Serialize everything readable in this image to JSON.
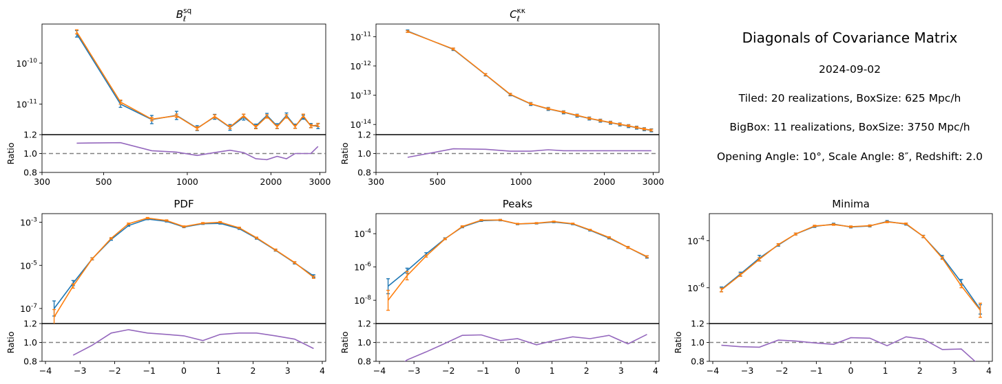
{
  "colors": {
    "tiled": "#1f77b4",
    "bigbox": "#ff7f0e",
    "ratio": "#9467bd",
    "reference": "#808080"
  },
  "info": {
    "title": "Diagonals of Covariance Matrix",
    "date": "2024-09-02",
    "tiled": "Tiled: 20 realizations, BoxSize: 625 Mpc/h",
    "bigbox": "BigBox: 11 realizations, BoxSize: 3750 Mpc/h",
    "params": "Opening Angle: 10°, Scale Angle: 8″, Redshift: 2.0"
  },
  "chart_data": [
    {
      "type": "line",
      "title": "B_ℓ^sq",
      "yscale": "log",
      "xscale": "log",
      "ylim": [
        1.8e-12,
        9e-10
      ],
      "yticks": [
        {
          "v": 1e-10,
          "label": "10^-10"
        },
        {
          "v": 1e-11,
          "label": "10^-11"
        }
      ],
      "xlim": [
        300,
        3150
      ],
      "xticks": [
        {
          "v": 300,
          "label": "300"
        },
        {
          "v": 500,
          "label": "500"
        },
        {
          "v": 1000,
          "label": "1000"
        },
        {
          "v": 2000,
          "label": "2000"
        },
        {
          "v": 3000,
          "label": "3000"
        }
      ],
      "x": [
        400,
        575,
        745,
        915,
        1085,
        1255,
        1425,
        1595,
        1765,
        1935,
        2105,
        2275,
        2445,
        2615,
        2785,
        2955
      ],
      "series": [
        {
          "key": "tiled",
          "values": [
            5.2e-10,
            1e-11,
            4.2e-12,
            5.3e-12,
            2.6e-12,
            4.9e-12,
            2.7e-12,
            4.8e-12,
            2.9e-12,
            5.3e-12,
            2.9e-12,
            5.3e-12,
            2.9e-12,
            4.8e-12,
            3e-12,
            2.9e-12
          ],
          "err": [
            0.08,
            0.08,
            0.1,
            0.1,
            0.06,
            0.06,
            0.07,
            0.07,
            0.05,
            0.05,
            0.06,
            0.06,
            0.05,
            0.05,
            0.05,
            0.06
          ]
        },
        {
          "key": "bigbox",
          "values": [
            5.8e-10,
            1.12e-11,
            4.3e-12,
            5.2e-12,
            2.55e-12,
            5e-12,
            2.75e-12,
            5.2e-12,
            2.75e-12,
            5e-12,
            2.8e-12,
            5e-12,
            2.8e-12,
            5.2e-12,
            2.9e-12,
            3.1e-12
          ],
          "err": [
            0.05,
            0.05,
            0.04,
            0.04,
            0.04,
            0.04,
            0.04,
            0.04,
            0.04,
            0.04,
            0.04,
            0.04,
            0.04,
            0.04,
            0.04,
            0.04
          ]
        }
      ],
      "ratio_x": [
        400,
        575,
        745,
        915,
        1085,
        1255,
        1425,
        1595,
        1765,
        1935,
        2105,
        2275,
        2445,
        2615,
        2785,
        2955
      ],
      "ratio": [
        1.11,
        1.115,
        1.03,
        1.015,
        0.98,
        1.01,
        1.035,
        1.01,
        0.945,
        0.935,
        0.97,
        0.945,
        1.0,
        1.0,
        1.0,
        1.075
      ],
      "ratio_ylabel": "Ratio",
      "ratio_ylim": [
        0.8,
        1.2
      ],
      "ratio_yticks": [
        "0.8",
        "1.0",
        "1.2"
      ]
    },
    {
      "type": "line",
      "title": "C_ℓ^κκ",
      "yscale": "log",
      "xscale": "log",
      "ylim": [
        4.5e-15,
        2.7e-11
      ],
      "yticks": [
        {
          "v": 1e-11,
          "label": "10^-11"
        },
        {
          "v": 1e-12,
          "label": "10^-12"
        },
        {
          "v": 1e-13,
          "label": "10^-13"
        },
        {
          "v": 1e-14,
          "label": "10^-14"
        }
      ],
      "xlim": [
        300,
        3150
      ],
      "xticks": [
        {
          "v": 300,
          "label": "300"
        },
        {
          "v": 500,
          "label": "500"
        },
        {
          "v": 1000,
          "label": "1000"
        },
        {
          "v": 2000,
          "label": "2000"
        },
        {
          "v": 3000,
          "label": "3000"
        }
      ],
      "x": [
        390,
        570,
        745,
        915,
        1085,
        1255,
        1425,
        1595,
        1765,
        1935,
        2105,
        2275,
        2445,
        2615,
        2785,
        2955
      ],
      "series": [
        {
          "key": "tiled",
          "values": [
            1.55e-11,
            3.7e-12,
            5e-13,
            1.05e-13,
            5e-14,
            3.4e-14,
            2.6e-14,
            2e-14,
            1.6e-14,
            1.35e-14,
            1.15e-14,
            1e-14,
            8.8e-15,
            7.8e-15,
            6.9e-15,
            6.3e-15
          ],
          "err": [
            0.04,
            0.04,
            0.04,
            0.04,
            0.05,
            0.05,
            0.05,
            0.05,
            0.05,
            0.05,
            0.05,
            0.05,
            0.05,
            0.05,
            0.05,
            0.05
          ]
        },
        {
          "key": "bigbox",
          "values": [
            1.5e-11,
            3.8e-12,
            5.1e-13,
            1.08e-13,
            5.1e-14,
            3.45e-14,
            2.65e-14,
            2.05e-14,
            1.62e-14,
            1.37e-14,
            1.17e-14,
            1.02e-14,
            9e-15,
            7.9e-15,
            7e-15,
            6.4e-15
          ],
          "err": [
            0.03,
            0.03,
            0.03,
            0.03,
            0.03,
            0.03,
            0.03,
            0.03,
            0.03,
            0.03,
            0.03,
            0.03,
            0.03,
            0.03,
            0.03,
            0.03
          ]
        }
      ],
      "ratio_x": [
        390,
        570,
        745,
        915,
        1085,
        1255,
        1425,
        1595,
        1765,
        1935,
        2105,
        2275,
        2445,
        2615,
        2785,
        2955
      ],
      "ratio": [
        0.96,
        1.05,
        1.045,
        1.025,
        1.025,
        1.04,
        1.03,
        1.03,
        1.03,
        1.03,
        1.03,
        1.03,
        1.03,
        1.03,
        1.03,
        1.03
      ],
      "ratio_ylabel": "Ratio",
      "ratio_ylim": [
        0.8,
        1.2
      ],
      "ratio_yticks": [
        "0.8",
        "1.0",
        "1.2"
      ]
    },
    {
      "type": "line",
      "title": "PDF",
      "yscale": "log",
      "xscale": "linear",
      "ylim": [
        2e-08,
        0.0025
      ],
      "yticks": [
        {
          "v": 0.001,
          "label": "10^-3"
        },
        {
          "v": 1e-05,
          "label": "10^-5"
        },
        {
          "v": 1e-07,
          "label": "10^-7"
        }
      ],
      "xlim": [
        -4.1,
        4.1
      ],
      "xticks": [
        {
          "v": -4,
          "label": "−4"
        },
        {
          "v": -3,
          "label": "−3"
        },
        {
          "v": -2,
          "label": "−2"
        },
        {
          "v": -1,
          "label": "−1"
        },
        {
          "v": 0,
          "label": "0"
        },
        {
          "v": 1,
          "label": "1"
        },
        {
          "v": 2,
          "label": "2"
        },
        {
          "v": 3,
          "label": "3"
        },
        {
          "v": 4,
          "label": "4"
        }
      ],
      "x": [
        -3.75,
        -3.2,
        -2.65,
        -2.1,
        -1.6,
        -1.05,
        -0.5,
        0.0,
        0.55,
        1.05,
        1.6,
        2.1,
        2.65,
        3.2,
        3.75
      ],
      "series": [
        {
          "key": "tiled",
          "values": [
            1e-07,
            1.5e-06,
            2e-05,
            0.00016,
            0.0007,
            0.0014,
            0.0011,
            0.0006,
            0.00085,
            0.00088,
            0.0005,
            0.00018,
            5e-05,
            1.3e-05,
            3.2e-06
          ],
          "err": [
            0.35,
            0.12,
            0.05,
            0.04,
            0.03,
            0.03,
            0.03,
            0.03,
            0.03,
            0.03,
            0.03,
            0.04,
            0.04,
            0.05,
            0.06
          ]
        },
        {
          "key": "bigbox",
          "values": [
            4e-08,
            1.1e-06,
            2e-05,
            0.00018,
            0.00085,
            0.00155,
            0.0012,
            0.00063,
            0.0009,
            0.001,
            0.00055,
            0.00019,
            5.2e-05,
            1.35e-05,
            2.8e-06
          ],
          "err": [
            0.35,
            0.1,
            0.04,
            0.03,
            0.03,
            0.03,
            0.03,
            0.03,
            0.03,
            0.03,
            0.03,
            0.03,
            0.04,
            0.04,
            0.05
          ]
        }
      ],
      "ratio_x": [
        -3.2,
        -2.65,
        -2.1,
        -1.6,
        -1.05,
        -0.5,
        0.0,
        0.55,
        1.05,
        1.6,
        2.1,
        2.65,
        3.2,
        3.75
      ],
      "ratio": [
        0.865,
        0.97,
        1.1,
        1.135,
        1.1,
        1.085,
        1.07,
        1.02,
        1.085,
        1.1,
        1.1,
        1.07,
        1.035,
        0.935
      ],
      "ratio_ylabel": "Ratio",
      "ratio_ylim": [
        0.8,
        1.2
      ],
      "ratio_yticks": [
        "0.8",
        "1.0",
        "1.2"
      ]
    },
    {
      "type": "line",
      "title": "Peaks",
      "yscale": "log",
      "xscale": "linear",
      "ylim": [
        4e-10,
        0.0016
      ],
      "yticks": [
        {
          "v": 0.0001,
          "label": "10^-4"
        },
        {
          "v": 1e-06,
          "label": "10^-6"
        },
        {
          "v": 1e-08,
          "label": "10^-8"
        }
      ],
      "xlim": [
        -4.1,
        4.1
      ],
      "xticks": [
        {
          "v": -4,
          "label": "−4"
        },
        {
          "v": -3,
          "label": "−3"
        },
        {
          "v": -2,
          "label": "−2"
        },
        {
          "v": -1,
          "label": "−1"
        },
        {
          "v": 0,
          "label": "0"
        },
        {
          "v": 1,
          "label": "1"
        },
        {
          "v": 2,
          "label": "2"
        },
        {
          "v": 3,
          "label": "3"
        },
        {
          "v": 4,
          "label": "4"
        }
      ],
      "x": [
        -3.75,
        -3.2,
        -2.65,
        -2.1,
        -1.6,
        -1.05,
        -0.5,
        0.0,
        0.55,
        1.05,
        1.6,
        2.1,
        2.65,
        3.2,
        3.75
      ],
      "series": [
        {
          "key": "tiled",
          "values": [
            7e-08,
            6e-07,
            6e-06,
            5e-05,
            0.00025,
            0.0006,
            0.00065,
            0.00038,
            0.00042,
            0.0005,
            0.00038,
            0.00016,
            5.5e-05,
            1.5e-05,
            4e-06
          ],
          "err": [
            0.45,
            0.15,
            0.08,
            0.05,
            0.04,
            0.04,
            0.04,
            0.04,
            0.04,
            0.04,
            0.04,
            0.04,
            0.05,
            0.06,
            0.07
          ]
        },
        {
          "key": "bigbox",
          "values": [
            1e-08,
            3e-07,
            4.5e-06,
            4.8e-05,
            0.00027,
            0.00065,
            0.00067,
            0.00039,
            0.00043,
            0.00053,
            0.0004,
            0.00017,
            6e-05,
            1.5e-05,
            4.2e-06
          ],
          "err": [
            0.6,
            0.25,
            0.06,
            0.04,
            0.04,
            0.03,
            0.03,
            0.03,
            0.03,
            0.03,
            0.03,
            0.03,
            0.04,
            0.05,
            0.05
          ]
        }
      ],
      "ratio_x": [
        -3.55,
        -3.2,
        -2.65,
        -2.1,
        -1.6,
        -1.05,
        -0.5,
        0.0,
        0.55,
        1.05,
        1.6,
        2.1,
        2.65,
        3.2,
        3.75
      ],
      "ratio": [
        0.72,
        0.815,
        0.9,
        0.99,
        1.075,
        1.08,
        1.02,
        1.04,
        0.975,
        1.02,
        1.06,
        1.04,
        1.075,
        0.985,
        1.085
      ],
      "ratio_ylabel": "Ratio",
      "ratio_ylim": [
        0.8,
        1.2
      ],
      "ratio_yticks": [
        "0.8",
        "1.0",
        "1.2"
      ]
    },
    {
      "type": "line",
      "title": "Minima",
      "yscale": "log",
      "xscale": "linear",
      "ylim": [
        3e-08,
        0.0014
      ],
      "yticks": [
        {
          "v": 0.0001,
          "label": "10^-4"
        },
        {
          "v": 1e-06,
          "label": "10^-6"
        }
      ],
      "xlim": [
        -4.1,
        4.1
      ],
      "xticks": [
        {
          "v": -4,
          "label": "−4"
        },
        {
          "v": -3,
          "label": "−3"
        },
        {
          "v": -2,
          "label": "−2"
        },
        {
          "v": -1,
          "label": "−1"
        },
        {
          "v": 0,
          "label": "0"
        },
        {
          "v": 1,
          "label": "1"
        },
        {
          "v": 2,
          "label": "2"
        },
        {
          "v": 3,
          "label": "3"
        },
        {
          "v": 4,
          "label": "4"
        }
      ],
      "x": [
        -3.75,
        -3.2,
        -2.65,
        -2.1,
        -1.6,
        -1.05,
        -0.5,
        0.0,
        0.55,
        1.05,
        1.6,
        2.1,
        2.65,
        3.2,
        3.75
      ],
      "series": [
        {
          "key": "tiled",
          "values": [
            8.5e-07,
            3.8e-06,
            1.8e-05,
            6.5e-05,
            0.00019,
            0.0004,
            0.0005,
            0.00038,
            0.00042,
            0.00065,
            0.0005,
            0.00015,
            2e-05,
            1.7e-06,
            1.2e-07
          ],
          "err": [
            0.1,
            0.08,
            0.12,
            0.05,
            0.04,
            0.04,
            0.04,
            0.04,
            0.04,
            0.04,
            0.04,
            0.05,
            0.07,
            0.12,
            0.2
          ]
        },
        {
          "key": "bigbox",
          "values": [
            8e-07,
            3.5e-06,
            1.6e-05,
            6.8e-05,
            0.00019,
            0.00042,
            0.00048,
            0.00039,
            0.00043,
            0.00062,
            0.00052,
            0.00015,
            1.8e-05,
            1.2e-06,
            1.1e-07
          ],
          "err": [
            0.08,
            0.06,
            0.07,
            0.04,
            0.04,
            0.03,
            0.03,
            0.03,
            0.03,
            0.03,
            0.03,
            0.04,
            0.05,
            0.08,
            0.3
          ]
        }
      ],
      "ratio_x": [
        -3.75,
        -3.2,
        -2.65,
        -2.1,
        -1.6,
        -1.05,
        -0.5,
        0.0,
        0.55,
        1.05,
        1.6,
        2.1,
        2.65,
        3.2,
        3.75
      ],
      "ratio": [
        0.97,
        0.955,
        0.95,
        1.025,
        1.015,
        0.995,
        0.98,
        1.05,
        1.045,
        0.965,
        1.06,
        1.035,
        0.925,
        0.93,
        0.75
      ],
      "ratio_ylabel": "Ratio",
      "ratio_ylim": [
        0.8,
        1.2
      ],
      "ratio_yticks": [
        "0.8",
        "1.0",
        "1.2"
      ]
    }
  ]
}
